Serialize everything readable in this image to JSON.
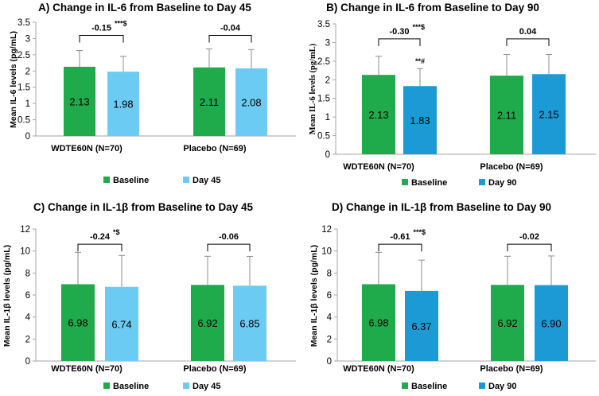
{
  "colors": {
    "baseline": "#1faa4b",
    "day45": "#6ccbf2",
    "day90": "#1b9ad6"
  },
  "chart_data": [
    {
      "panel": "A",
      "type": "bar",
      "title": "A) Change in IL-6 from Baseline to Day 45",
      "ylabel": "Mean IL-6 levels (pg/mL)",
      "ylim": [
        0,
        3.5
      ],
      "yticks": [
        "0",
        "0.5",
        "1",
        "1.5",
        "2",
        "2.5",
        "3",
        "3.5"
      ],
      "categories": [
        "WDTE60N (N=70)",
        "Placebo (N=69)"
      ],
      "series": [
        {
          "name": "Baseline",
          "color_key": "baseline",
          "values": [
            2.13,
            2.11
          ],
          "labels": [
            "2.13",
            "2.11"
          ],
          "errors": [
            0.5,
            0.57
          ]
        },
        {
          "name": "Day 45",
          "color_key": "day45",
          "values": [
            1.98,
            2.08
          ],
          "labels": [
            "1.98",
            "2.08"
          ],
          "errors": [
            0.47,
            0.58
          ]
        }
      ],
      "differences": [
        {
          "text": "-0.15",
          "sup": "***$"
        },
        {
          "text": "-0.04",
          "sup": ""
        }
      ],
      "annotations": [],
      "legend": [
        "Baseline",
        "Day 45"
      ]
    },
    {
      "panel": "B",
      "type": "bar",
      "title": "B) Change in IL-6 from Baseline to Day 90",
      "ylabel": "Mean IL-6 levels (pg/mL)",
      "ylim": [
        0,
        3.5
      ],
      "yticks": [
        "0",
        "0.5",
        "1",
        "1.5",
        "2",
        "2.5",
        "3",
        "3.5"
      ],
      "categories": [
        "WDTE60N (N=70)",
        "Placebo (N=69)"
      ],
      "series": [
        {
          "name": "Baseline",
          "color_key": "baseline",
          "values": [
            2.13,
            2.11
          ],
          "labels": [
            "2.13",
            "2.11"
          ],
          "errors": [
            0.5,
            0.57
          ]
        },
        {
          "name": "Day 90",
          "color_key": "day90",
          "values": [
            1.83,
            2.15
          ],
          "labels": [
            "1.83",
            "2.15"
          ],
          "errors": [
            0.47,
            0.53
          ]
        }
      ],
      "differences": [
        {
          "text": "-0.30",
          "sup": "***$"
        },
        {
          "text": "0.04",
          "sup": ""
        }
      ],
      "annotations": [
        {
          "text": "**#",
          "category": 0,
          "series": 1
        }
      ],
      "legend": [
        "Baseline",
        "Day 90"
      ]
    },
    {
      "panel": "C",
      "type": "bar",
      "title": "C) Change in IL-1β from Baseline to Day 45",
      "ylabel": "Mean IL-1β levels (pg/mL)",
      "ylim": [
        0,
        12
      ],
      "yticks": [
        "0",
        "2",
        "4",
        "6",
        "8",
        "10",
        "12"
      ],
      "categories": [
        "WDTE60N (N=70)",
        "Placebo (N=69)"
      ],
      "series": [
        {
          "name": "Baseline",
          "color_key": "baseline",
          "values": [
            6.98,
            6.92
          ],
          "labels": [
            "6.98",
            "6.92"
          ],
          "errors": [
            2.9,
            2.6
          ]
        },
        {
          "name": "Day 45",
          "color_key": "day45",
          "values": [
            6.74,
            6.85
          ],
          "labels": [
            "6.74",
            "6.85"
          ],
          "errors": [
            2.85,
            2.65
          ]
        }
      ],
      "differences": [
        {
          "text": "-0.24",
          "sup": "*$"
        },
        {
          "text": "-0.06",
          "sup": ""
        }
      ],
      "annotations": [],
      "legend": [
        "Baseline",
        "Day 45"
      ]
    },
    {
      "panel": "D",
      "type": "bar",
      "title": "D) Change in IL-1β from Baseline to Day 90",
      "ylabel": "Mean IL-1β levels (pg/mL)",
      "ylim": [
        0,
        12
      ],
      "yticks": [
        "0",
        "2",
        "4",
        "6",
        "8",
        "10",
        "12"
      ],
      "categories": [
        "WDTE60N (N=70)",
        "Placebo (N=69)"
      ],
      "series": [
        {
          "name": "Baseline",
          "color_key": "baseline",
          "values": [
            6.98,
            6.92
          ],
          "labels": [
            "6.98",
            "6.92"
          ],
          "errors": [
            2.9,
            2.6
          ]
        },
        {
          "name": "Day 90",
          "color_key": "day90",
          "values": [
            6.37,
            6.9
          ],
          "labels": [
            "6.37",
            "6.90"
          ],
          "errors": [
            2.8,
            2.65
          ]
        }
      ],
      "differences": [
        {
          "text": "-0.61",
          "sup": "***$"
        },
        {
          "text": "-0.02",
          "sup": ""
        }
      ],
      "annotations": [],
      "legend": [
        "Baseline",
        "Day 90"
      ]
    }
  ]
}
